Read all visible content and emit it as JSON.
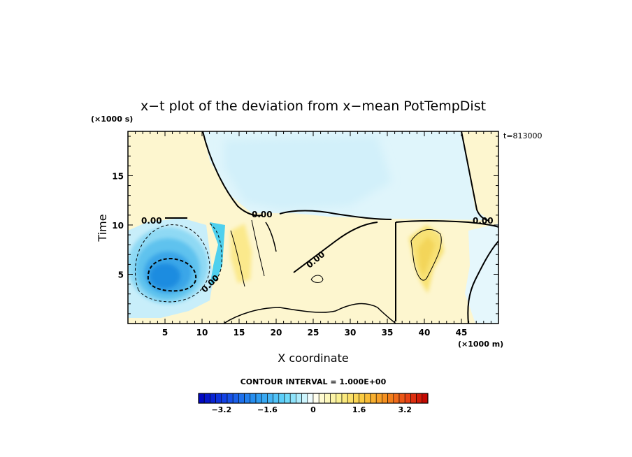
{
  "chart_data": {
    "type": "heatmap",
    "title": "x−t plot of the deviation from x−mean PotTempDist",
    "xlabel": "X coordinate",
    "ylabel": "Time",
    "x_unit": "(×1000 m)",
    "y_unit": "(×1000 s)",
    "time_stamp": "t=813000",
    "xlim": [
      0,
      50
    ],
    "ylim": [
      0,
      19.5
    ],
    "x_ticks": [
      5,
      10,
      15,
      20,
      25,
      30,
      35,
      40,
      45
    ],
    "y_ticks": [
      5,
      10,
      15
    ],
    "contour_labels": [
      "0.00",
      "0.00",
      "0.00",
      "0.00",
      "0.00",
      "0.00"
    ],
    "contour_interval_text": "CONTOUR INTERVAL = 1.000E+00",
    "colorbar": {
      "range": [
        -4.0,
        4.0
      ],
      "n_levels": 40,
      "ticks": [
        "−3.2",
        "−1.6",
        "0",
        "1.6",
        "3.2"
      ]
    },
    "features": [
      {
        "kind": "cold_core",
        "x": 5,
        "t": 5,
        "value": -3.0
      },
      {
        "kind": "cold_band",
        "x": 12.5,
        "t": 8,
        "value": -1.5
      },
      {
        "kind": "warm_region",
        "x": 30,
        "t": 5,
        "value": 0.5
      },
      {
        "kind": "warm_patch",
        "x": 40,
        "t": 6,
        "value": 1.0
      },
      {
        "kind": "cool_upper",
        "x": 28,
        "t": 16,
        "value": -0.3
      }
    ]
  }
}
